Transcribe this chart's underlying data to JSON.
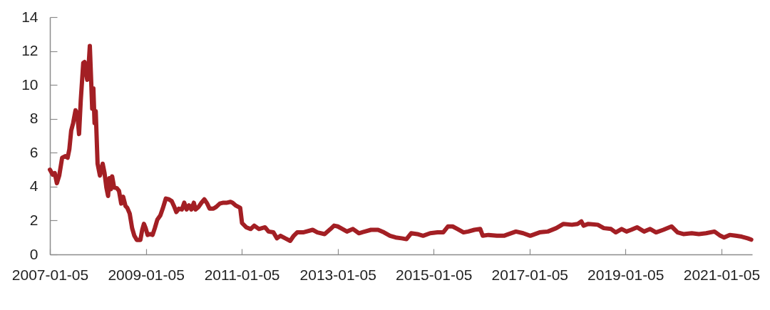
{
  "chart_data": {
    "type": "line",
    "x": [
      "2007-01-05",
      "2007-01-27",
      "2007-02-11",
      "2007-02-27",
      "2007-03-17",
      "2007-04-08",
      "2007-05-02",
      "2007-05-20",
      "2007-06-02",
      "2007-06-16",
      "2007-07-01",
      "2007-07-19",
      "2007-08-01",
      "2007-08-15",
      "2007-08-28",
      "2007-09-16",
      "2007-09-26",
      "2007-10-16",
      "2007-10-25",
      "2007-11-05",
      "2007-11-14",
      "2007-11-23",
      "2007-12-02",
      "2007-12-11",
      "2007-12-20",
      "2008-01-03",
      "2008-01-21",
      "2008-02-11",
      "2008-02-25",
      "2008-03-10",
      "2008-03-23",
      "2008-04-02",
      "2008-04-14",
      "2008-04-23",
      "2008-05-08",
      "2008-05-30",
      "2008-06-14",
      "2008-07-01",
      "2008-07-16",
      "2008-08-03",
      "2008-08-16",
      "2008-09-04",
      "2008-09-22",
      "2008-10-09",
      "2008-10-28",
      "2008-11-24",
      "2008-12-08",
      "2008-12-21",
      "2009-01-03",
      "2009-01-18",
      "2009-02-05",
      "2009-02-25",
      "2009-03-14",
      "2009-04-02",
      "2009-04-25",
      "2009-05-13",
      "2009-06-06",
      "2009-06-28",
      "2009-07-20",
      "2009-08-07",
      "2009-08-25",
      "2009-09-13",
      "2009-10-06",
      "2009-10-24",
      "2009-11-11",
      "2009-11-29",
      "2009-12-17",
      "2010-01-05",
      "2010-01-18",
      "2010-02-10",
      "2010-03-04",
      "2010-03-26",
      "2010-04-17",
      "2010-05-05",
      "2010-06-03",
      "2010-06-24",
      "2010-07-22",
      "2010-08-18",
      "2010-09-15",
      "2010-10-12",
      "2010-10-27",
      "2010-11-18",
      "2010-12-24",
      "2011-01-07",
      "2011-02-08",
      "2011-03-14",
      "2011-04-10",
      "2011-05-16",
      "2011-07-01",
      "2011-07-28",
      "2011-09-03",
      "2011-09-30",
      "2011-10-27",
      "2011-12-02",
      "2012-01-09",
      "2012-02-05",
      "2012-03-02",
      "2012-04-16",
      "2012-06-28",
      "2012-08-03",
      "2012-09-27",
      "2012-11-11",
      "2012-12-08",
      "2013-01-05",
      "2013-02-10",
      "2013-03-16",
      "2013-05-01",
      "2013-06-15",
      "2013-07-31",
      "2013-09-15",
      "2013-11-08",
      "2013-12-23",
      "2014-02-07",
      "2014-03-22",
      "2014-05-06",
      "2014-06-12",
      "2014-07-18",
      "2014-09-02",
      "2014-10-17",
      "2014-12-10",
      "2015-02-04",
      "2015-03-19",
      "2015-04-24",
      "2015-05-30",
      "2015-07-06",
      "2015-08-21",
      "2015-09-26",
      "2015-11-11",
      "2015-12-26",
      "2016-01-14",
      "2016-02-27",
      "2016-05-01",
      "2016-06-24",
      "2016-07-12",
      "2016-09-23",
      "2016-11-17",
      "2017-01-10",
      "2017-03-22",
      "2017-05-24",
      "2017-07-27",
      "2017-09-20",
      "2017-11-23",
      "2018-01-07",
      "2018-02-03",
      "2018-02-20",
      "2018-03-28",
      "2018-06-08",
      "2018-07-24",
      "2018-09-17",
      "2018-10-23",
      "2018-12-07",
      "2019-01-13",
      "2019-02-17",
      "2019-04-03",
      "2019-05-27",
      "2019-07-12",
      "2019-08-26",
      "2019-10-20",
      "2019-12-22",
      "2020-02-06",
      "2020-03-21",
      "2020-05-24",
      "2020-07-17",
      "2020-09-10",
      "2020-11-13",
      "2020-12-28",
      "2021-01-25",
      "2021-03-09",
      "2021-04-24",
      "2021-06-08",
      "2021-07-23",
      "2021-08-20"
    ],
    "series": [
      {
        "color": "#a31f24",
        "values": [
          5.0,
          4.7,
          4.8,
          4.2,
          4.65,
          5.7,
          5.8,
          5.7,
          6.2,
          7.3,
          7.75,
          8.5,
          8.3,
          7.1,
          9.1,
          11.3,
          11.35,
          10.3,
          10.9,
          12.3,
          10.5,
          8.6,
          9.8,
          7.75,
          8.45,
          5.35,
          4.65,
          5.35,
          4.8,
          3.95,
          3.45,
          4.5,
          3.85,
          4.6,
          3.95,
          3.9,
          3.75,
          3.0,
          3.4,
          2.85,
          2.75,
          2.4,
          1.55,
          1.1,
          0.85,
          0.85,
          1.45,
          1.8,
          1.55,
          1.15,
          1.2,
          1.15,
          1.55,
          2.05,
          2.3,
          2.7,
          3.3,
          3.25,
          3.15,
          2.85,
          2.5,
          2.7,
          2.65,
          3.05,
          2.65,
          2.9,
          2.65,
          3.05,
          2.65,
          2.8,
          3.05,
          3.25,
          3.0,
          2.7,
          2.7,
          2.8,
          3.0,
          3.05,
          3.05,
          3.1,
          3.05,
          2.9,
          2.75,
          1.85,
          1.6,
          1.5,
          1.7,
          1.5,
          1.6,
          1.35,
          1.3,
          0.95,
          1.1,
          0.95,
          0.8,
          1.1,
          1.3,
          1.3,
          1.45,
          1.3,
          1.2,
          1.5,
          1.7,
          1.65,
          1.5,
          1.35,
          1.5,
          1.25,
          1.35,
          1.45,
          1.45,
          1.3,
          1.1,
          1.0,
          0.95,
          0.9,
          1.25,
          1.2,
          1.1,
          1.25,
          1.3,
          1.3,
          1.65,
          1.65,
          1.5,
          1.3,
          1.35,
          1.45,
          1.5,
          1.1,
          1.15,
          1.1,
          1.1,
          1.15,
          1.35,
          1.25,
          1.1,
          1.3,
          1.35,
          1.55,
          1.8,
          1.75,
          1.8,
          1.95,
          1.7,
          1.8,
          1.75,
          1.55,
          1.5,
          1.3,
          1.5,
          1.35,
          1.45,
          1.6,
          1.35,
          1.5,
          1.3,
          1.45,
          1.65,
          1.3,
          1.2,
          1.25,
          1.2,
          1.25,
          1.35,
          1.1,
          1.0,
          1.15,
          1.1,
          1.05,
          0.95,
          0.87
        ]
      }
    ],
    "xlim": [
      "2007-01-05",
      "2021-08-27"
    ],
    "xticks": [
      "2007-01-05",
      "2009-01-05",
      "2011-01-05",
      "2013-01-05",
      "2015-01-05",
      "2017-01-05",
      "2019-01-05",
      "2021-01-05"
    ],
    "ylim": [
      0,
      14
    ],
    "yticks": [
      0,
      2,
      4,
      6,
      8,
      10,
      12,
      14
    ],
    "line_style": "solid"
  }
}
